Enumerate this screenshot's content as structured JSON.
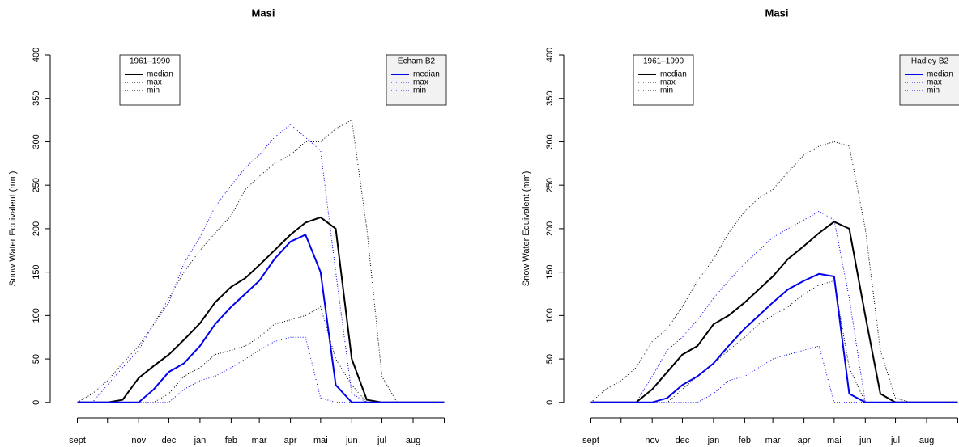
{
  "chart_data": [
    {
      "type": "line",
      "title": "Masi",
      "ylabel": "Snow Water Equivalent (mm)",
      "x": [
        0,
        15,
        30,
        45,
        61,
        76,
        91,
        106,
        122,
        137,
        153,
        167,
        181,
        196,
        212,
        227,
        242,
        257,
        273,
        288,
        303,
        318,
        334,
        349,
        365
      ],
      "xlim": [
        -27,
        392
      ],
      "ylim": [
        -16,
        416
      ],
      "xticks": [
        {
          "value": 0,
          "label": "sept"
        },
        {
          "value": 30,
          "label": null
        },
        {
          "value": 61,
          "label": "nov"
        },
        {
          "value": 91,
          "label": "dec"
        },
        {
          "value": 122,
          "label": "jan"
        },
        {
          "value": 153,
          "label": "feb"
        },
        {
          "value": 181,
          "label": "mar"
        },
        {
          "value": 212,
          "label": "apr"
        },
        {
          "value": 242,
          "label": "mai"
        },
        {
          "value": 273,
          "label": "jun"
        },
        {
          "value": 303,
          "label": "jul"
        },
        {
          "value": 334,
          "label": "aug"
        },
        {
          "value": 365,
          "label": null
        }
      ],
      "yticks": [
        0,
        50,
        100,
        150,
        200,
        250,
        300,
        350,
        400
      ],
      "groups": [
        {
          "title": "1961–1990",
          "corner": "top-left",
          "series": [
            {
              "name": "median",
              "color": "#000000",
              "dash": "solid",
              "values": [
                0,
                0,
                0,
                3,
                28,
                42,
                55,
                72,
                91,
                115,
                133,
                143,
                158,
                175,
                193,
                207,
                213,
                200,
                50,
                3,
                0,
                0,
                0,
                0,
                0
              ]
            },
            {
              "name": "max",
              "color": "#000000",
              "dash": "dotted",
              "values": [
                0,
                10,
                25,
                45,
                65,
                90,
                120,
                150,
                175,
                195,
                215,
                245,
                260,
                275,
                285,
                300,
                300,
                315,
                325,
                200,
                30,
                0,
                0,
                0,
                0
              ]
            },
            {
              "name": "min",
              "color": "#000000",
              "dash": "dotted",
              "values": [
                0,
                0,
                0,
                0,
                0,
                0,
                10,
                30,
                40,
                55,
                60,
                65,
                75,
                90,
                95,
                100,
                110,
                50,
                20,
                0,
                0,
                0,
                0,
                0,
                0
              ]
            }
          ]
        },
        {
          "title": "Echam B2",
          "corner": "top-right",
          "series": [
            {
              "name": "median",
              "color": "#0000ee",
              "dash": "solid",
              "values": [
                0,
                0,
                0,
                0,
                0,
                15,
                35,
                45,
                65,
                90,
                110,
                125,
                140,
                165,
                185,
                193,
                150,
                20,
                0,
                0,
                0,
                0,
                0,
                0,
                0
              ]
            },
            {
              "name": "max",
              "color": "#0000ee",
              "dash": "dotted",
              "values": [
                0,
                0,
                20,
                40,
                60,
                90,
                115,
                160,
                190,
                225,
                250,
                270,
                285,
                305,
                320,
                305,
                290,
                150,
                10,
                0,
                0,
                0,
                0,
                0,
                0
              ]
            },
            {
              "name": "min",
              "color": "#0000ee",
              "dash": "dotted",
              "values": [
                0,
                0,
                0,
                0,
                0,
                0,
                0,
                15,
                25,
                30,
                40,
                50,
                60,
                70,
                75,
                75,
                5,
                0,
                0,
                0,
                0,
                0,
                0,
                0,
                0
              ]
            }
          ]
        }
      ]
    },
    {
      "type": "line",
      "title": "Masi",
      "ylabel": "Snow Water Equivalent (mm)",
      "x": [
        0,
        15,
        30,
        45,
        61,
        76,
        91,
        106,
        122,
        137,
        153,
        167,
        181,
        196,
        212,
        227,
        242,
        257,
        273,
        288,
        303,
        318,
        334,
        349,
        365
      ],
      "xlim": [
        -27,
        392
      ],
      "ylim": [
        -16,
        416
      ],
      "xticks": [
        {
          "value": 0,
          "label": "sept"
        },
        {
          "value": 30,
          "label": null
        },
        {
          "value": 61,
          "label": "nov"
        },
        {
          "value": 91,
          "label": "dec"
        },
        {
          "value": 122,
          "label": "jan"
        },
        {
          "value": 153,
          "label": "feb"
        },
        {
          "value": 181,
          "label": "mar"
        },
        {
          "value": 212,
          "label": "apr"
        },
        {
          "value": 242,
          "label": "mai"
        },
        {
          "value": 273,
          "label": "jun"
        },
        {
          "value": 303,
          "label": "jul"
        },
        {
          "value": 334,
          "label": "aug"
        },
        {
          "value": 365,
          "label": null
        }
      ],
      "yticks": [
        0,
        50,
        100,
        150,
        200,
        250,
        300,
        350,
        400
      ],
      "groups": [
        {
          "title": "1961–1990",
          "corner": "top-left",
          "series": [
            {
              "name": "median",
              "color": "#000000",
              "dash": "solid",
              "values": [
                0,
                0,
                0,
                0,
                15,
                35,
                55,
                65,
                90,
                100,
                115,
                130,
                145,
                165,
                180,
                195,
                208,
                200,
                100,
                10,
                0,
                0,
                0,
                0,
                0
              ]
            },
            {
              "name": "max",
              "color": "#000000",
              "dash": "dotted",
              "values": [
                0,
                15,
                25,
                40,
                70,
                85,
                110,
                140,
                165,
                195,
                220,
                235,
                245,
                265,
                285,
                295,
                300,
                295,
                200,
                60,
                5,
                0,
                0,
                0,
                0
              ]
            },
            {
              "name": "min",
              "color": "#000000",
              "dash": "dotted",
              "values": [
                0,
                0,
                0,
                0,
                0,
                0,
                15,
                30,
                45,
                60,
                75,
                90,
                100,
                110,
                125,
                135,
                140,
                40,
                0,
                0,
                0,
                0,
                0,
                0,
                0
              ]
            }
          ]
        },
        {
          "title": "Hadley B2",
          "corner": "top-right",
          "series": [
            {
              "name": "median",
              "color": "#0000ee",
              "dash": "solid",
              "values": [
                0,
                0,
                0,
                0,
                0,
                5,
                20,
                30,
                45,
                65,
                85,
                100,
                115,
                130,
                140,
                148,
                145,
                10,
                0,
                0,
                0,
                0,
                0,
                0,
                0
              ]
            },
            {
              "name": "max",
              "color": "#0000ee",
              "dash": "dotted",
              "values": [
                0,
                0,
                0,
                0,
                30,
                60,
                75,
                95,
                120,
                140,
                160,
                175,
                190,
                200,
                210,
                220,
                210,
                120,
                0,
                0,
                0,
                0,
                0,
                0,
                0
              ]
            },
            {
              "name": "min",
              "color": "#0000ee",
              "dash": "dotted",
              "values": [
                0,
                0,
                0,
                0,
                0,
                0,
                0,
                0,
                10,
                25,
                30,
                40,
                50,
                55,
                60,
                65,
                0,
                0,
                0,
                0,
                0,
                0,
                0,
                0,
                0
              ]
            }
          ]
        }
      ]
    }
  ]
}
